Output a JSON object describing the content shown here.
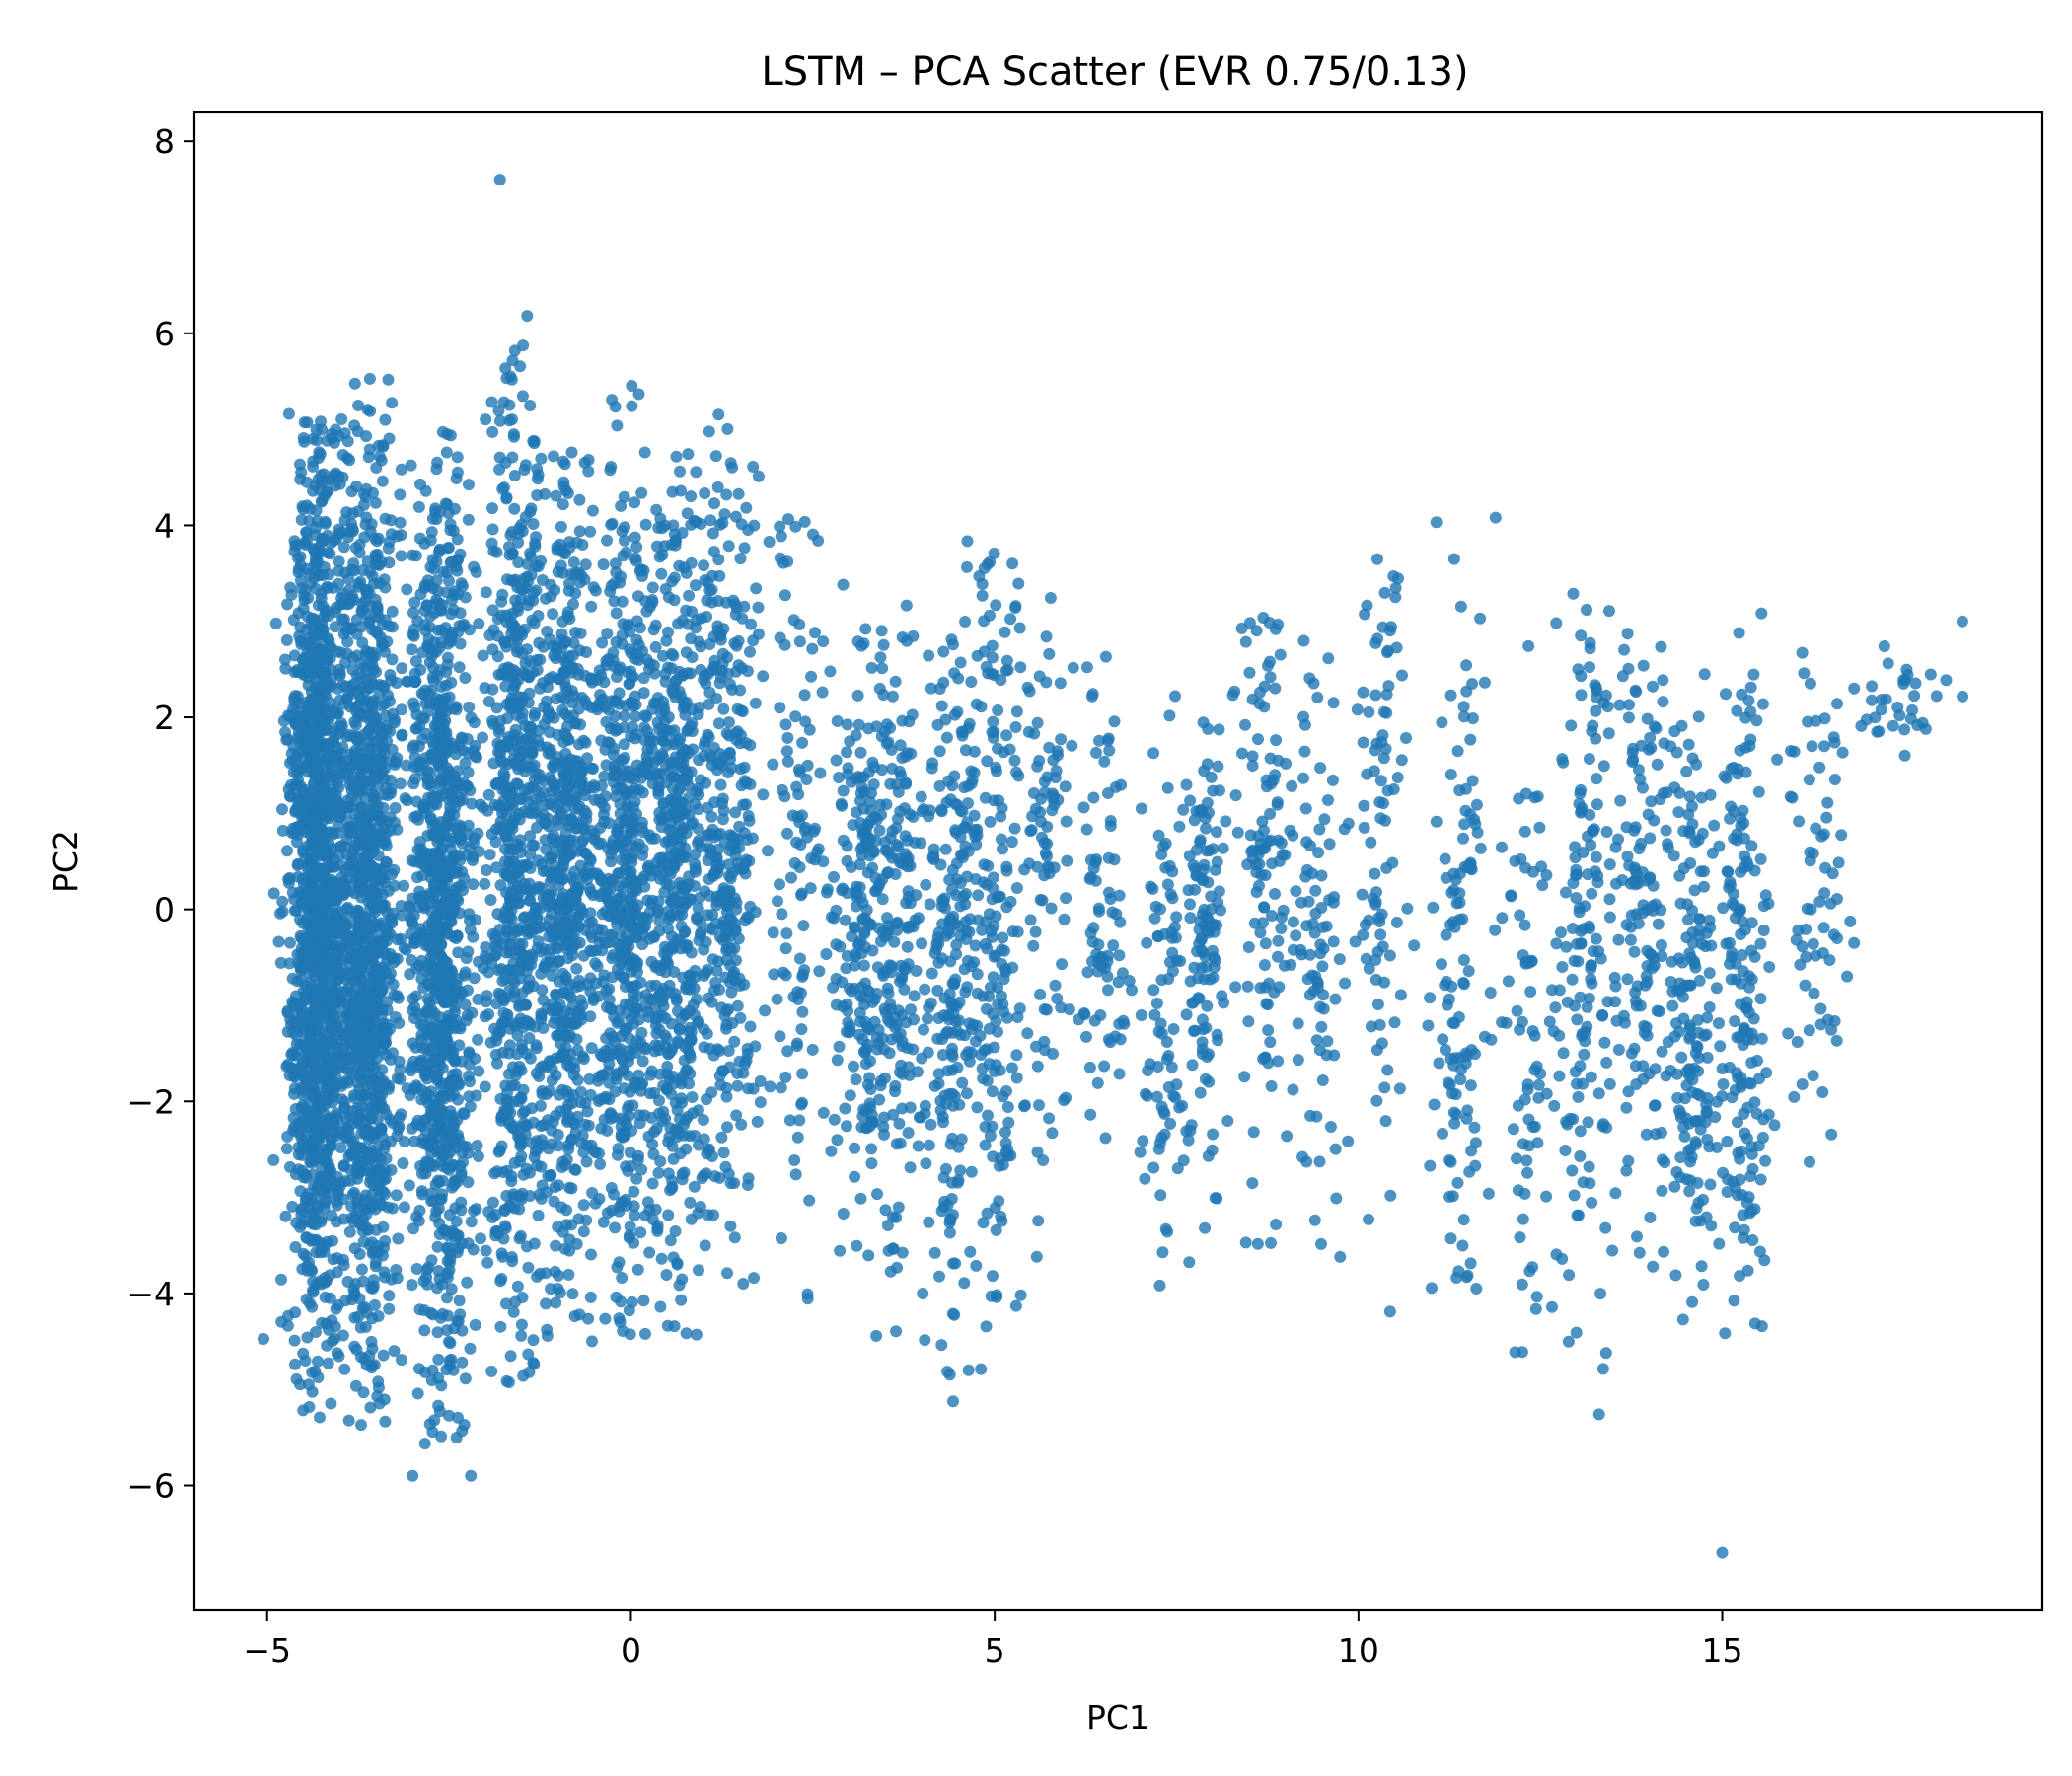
{
  "chart_data": {
    "type": "scatter",
    "title": "LSTM – PCA Scatter (EVR 0.75/0.13)",
    "xlabel": "PC1",
    "ylabel": "PC2",
    "xlim": [
      -6.0,
      19.4
    ],
    "ylim": [
      -7.3,
      8.3
    ],
    "xticks": [
      -5,
      0,
      5,
      10,
      15
    ],
    "yticks": [
      -6,
      -4,
      -2,
      0,
      2,
      4,
      6,
      8
    ],
    "xtick_labels": [
      "−5",
      "0",
      "5",
      "10",
      "15"
    ],
    "ytick_labels": [
      "−6",
      "−4",
      "−2",
      "0",
      "2",
      "4",
      "6",
      "8"
    ],
    "grid": false,
    "marker_color": "#1f77b4",
    "marker_alpha": 0.8,
    "outliers": [
      {
        "x": -1.8,
        "y": 7.6
      },
      {
        "x": 15.0,
        "y": -6.7
      },
      {
        "x": -2.2,
        "y": -5.9
      },
      {
        "x": -3.0,
        "y": -5.9
      },
      {
        "x": 18.3,
        "y": 3.0
      }
    ],
    "clusters": [
      {
        "cx": -4.3,
        "x_spread": 0.35,
        "y_min": -5.6,
        "y_max": 5.2,
        "y_center": 0.2,
        "n": 1400
      },
      {
        "cx": -3.6,
        "x_spread": 0.35,
        "y_min": -5.4,
        "y_max": 5.6,
        "y_center": 0.0,
        "n": 1100
      },
      {
        "cx": -2.6,
        "x_spread": 0.35,
        "y_min": -5.9,
        "y_max": 5.0,
        "y_center": -0.2,
        "n": 1000
      },
      {
        "cx": -1.6,
        "x_spread": 0.35,
        "y_min": -5.0,
        "y_max": 6.2,
        "y_center": 0.3,
        "n": 650
      },
      {
        "cx": -0.9,
        "x_spread": 0.35,
        "y_min": -4.8,
        "y_max": 4.8,
        "y_center": 0.3,
        "n": 600
      },
      {
        "cx": -0.1,
        "x_spread": 0.35,
        "y_min": -4.5,
        "y_max": 5.5,
        "y_center": 0.2,
        "n": 550
      },
      {
        "cx": 0.6,
        "x_spread": 0.35,
        "y_min": -4.6,
        "y_max": 4.9,
        "y_center": 0.4,
        "n": 500
      },
      {
        "cx": 1.3,
        "x_spread": 0.35,
        "y_min": -4.0,
        "y_max": 5.2,
        "y_center": 0.8,
        "n": 350
      },
      {
        "cx": 2.3,
        "x_spread": 0.4,
        "y_min": -4.5,
        "y_max": 4.5,
        "y_center": 0.5,
        "n": 120
      },
      {
        "cx": 3.2,
        "x_spread": 0.35,
        "y_min": -4.7,
        "y_max": 3.0,
        "y_center": 0.0,
        "n": 220
      },
      {
        "cx": 3.7,
        "x_spread": 0.3,
        "y_min": -4.5,
        "y_max": 3.3,
        "y_center": -0.2,
        "n": 160
      },
      {
        "cx": 4.4,
        "x_spread": 0.3,
        "y_min": -5.2,
        "y_max": 3.0,
        "y_center": -0.6,
        "n": 220
      },
      {
        "cx": 5.0,
        "x_spread": 0.3,
        "y_min": -4.9,
        "y_max": 4.0,
        "y_center": 0.0,
        "n": 180
      },
      {
        "cx": 5.7,
        "x_spread": 0.3,
        "y_min": -4.4,
        "y_max": 3.6,
        "y_center": 0.2,
        "n": 90
      },
      {
        "cx": 6.5,
        "x_spread": 0.3,
        "y_min": -2.8,
        "y_max": 3.0,
        "y_center": 0.0,
        "n": 80
      },
      {
        "cx": 7.4,
        "x_spread": 0.3,
        "y_min": -4.0,
        "y_max": 2.5,
        "y_center": -1.0,
        "n": 90
      },
      {
        "cx": 7.9,
        "x_spread": 0.2,
        "y_min": -4.6,
        "y_max": 2.0,
        "y_center": -0.3,
        "n": 110
      },
      {
        "cx": 8.7,
        "x_spread": 0.3,
        "y_min": -4.0,
        "y_max": 3.1,
        "y_center": 0.6,
        "n": 110
      },
      {
        "cx": 9.4,
        "x_spread": 0.3,
        "y_min": -4.3,
        "y_max": 2.8,
        "y_center": 0.0,
        "n": 90
      },
      {
        "cx": 10.3,
        "x_spread": 0.3,
        "y_min": -4.3,
        "y_max": 4.1,
        "y_center": 0.6,
        "n": 90
      },
      {
        "cx": 11.4,
        "x_spread": 0.3,
        "y_min": -4.0,
        "y_max": 4.2,
        "y_center": -0.8,
        "n": 120
      },
      {
        "cx": 12.3,
        "x_spread": 0.3,
        "y_min": -5.0,
        "y_max": 3.0,
        "y_center": -1.5,
        "n": 70
      },
      {
        "cx": 13.1,
        "x_spread": 0.35,
        "y_min": -5.3,
        "y_max": 3.6,
        "y_center": -0.5,
        "n": 150
      },
      {
        "cx": 13.9,
        "x_spread": 0.35,
        "y_min": -4.1,
        "y_max": 3.0,
        "y_center": 0.0,
        "n": 140
      },
      {
        "cx": 14.6,
        "x_spread": 0.3,
        "y_min": -4.4,
        "y_max": 2.5,
        "y_center": -1.2,
        "n": 160
      },
      {
        "cx": 15.3,
        "x_spread": 0.3,
        "y_min": -4.6,
        "y_max": 3.7,
        "y_center": -0.6,
        "n": 170
      },
      {
        "cx": 16.3,
        "x_spread": 0.35,
        "y_min": -3.5,
        "y_max": 2.7,
        "y_center": 0.5,
        "n": 70
      },
      {
        "cx": 17.4,
        "x_spread": 0.6,
        "y_min": 1.6,
        "y_max": 2.8,
        "y_center": 2.2,
        "n": 35
      }
    ]
  }
}
